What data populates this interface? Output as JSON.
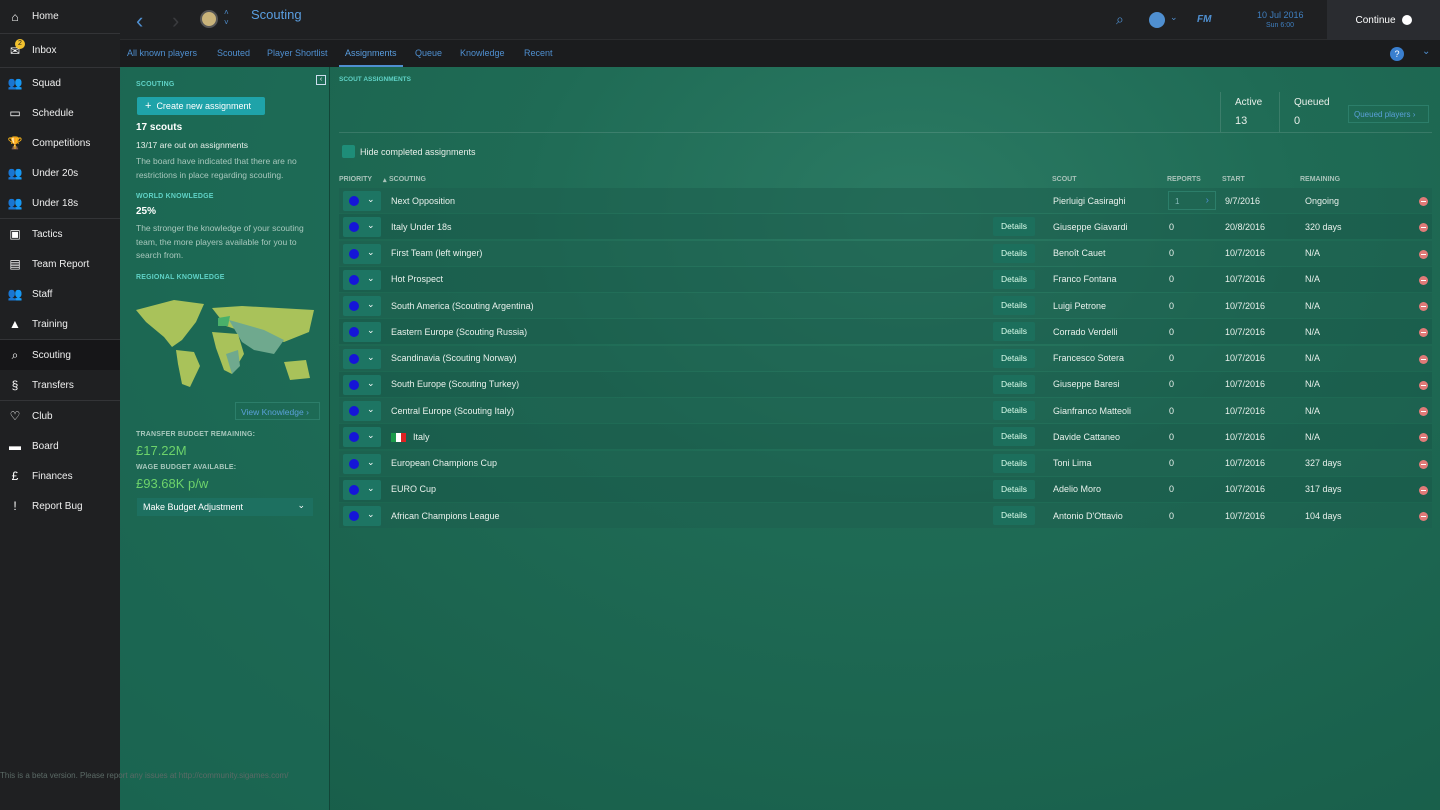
{
  "sidebar": {
    "items": [
      {
        "label": "Home",
        "icon": "home-icon"
      },
      {
        "label": "Inbox",
        "icon": "inbox-icon",
        "badge": "2"
      },
      {
        "label": "Squad",
        "icon": "squad-icon"
      },
      {
        "label": "Schedule",
        "icon": "calendar-icon"
      },
      {
        "label": "Competitions",
        "icon": "trophy-icon"
      },
      {
        "label": "Under 20s",
        "icon": "u20-icon"
      },
      {
        "label": "Under 18s",
        "icon": "u18-icon"
      },
      {
        "label": "Tactics",
        "icon": "tactics-icon"
      },
      {
        "label": "Team Report",
        "icon": "report-icon"
      },
      {
        "label": "Staff",
        "icon": "staff-icon"
      },
      {
        "label": "Training",
        "icon": "cone-icon"
      },
      {
        "label": "Scouting",
        "icon": "search-icon"
      },
      {
        "label": "Transfers",
        "icon": "transfer-icon"
      },
      {
        "label": "Club",
        "icon": "shield-icon"
      },
      {
        "label": "Board",
        "icon": "briefcase-icon"
      },
      {
        "label": "Finances",
        "icon": "pound-icon"
      },
      {
        "label": "Report Bug",
        "icon": "exclamation-icon"
      }
    ],
    "beta_notice": "This is a beta version. Please report any issues at http://community.sigames.com/"
  },
  "header": {
    "title": "Scouting",
    "date": "10 Jul 2016",
    "time": "Sun 6:00",
    "continue": "Continue",
    "fm": "FM"
  },
  "tabs": [
    "All known players",
    "Scouted",
    "Player Shortlist",
    "Assignments",
    "Queue",
    "Knowledge",
    "Recent"
  ],
  "left": {
    "section": "SCOUTING",
    "create": "Create new assignment",
    "scouts": "17 scouts",
    "out": "13/17 are out on assignments",
    "board_note": "The board have indicated that there are no restrictions in place regarding scouting.",
    "world_h": "WORLD KNOWLEDGE",
    "world_v": "25%",
    "world_note": "The stronger the knowledge of your scouting team, the more players available for you to search from.",
    "regional_h": "REGIONAL KNOWLEDGE",
    "view_knowledge": "View Knowledge",
    "transfer_h": "TRANSFER BUDGET REMAINING:",
    "transfer_v": "£17.22M",
    "wage_h": "WAGE BUDGET AVAILABLE:",
    "wage_v": "£93.68K p/w",
    "budget_adj": "Make Budget Adjustment"
  },
  "main": {
    "section": "SCOUT ASSIGNMENTS",
    "active_label": "Active",
    "active": "13",
    "queued_label": "Queued",
    "queued": "0",
    "queued_players": "Queued players",
    "hide_completed": "Hide completed assignments",
    "columns": {
      "priority": "PRIORITY",
      "scouting": "SCOUTING",
      "scout": "SCOUT",
      "reports": "REPORTS",
      "start": "START",
      "remaining": "REMAINING"
    },
    "details_label": "Details",
    "rows": [
      {
        "scouting": "Next Opposition",
        "scout": "Pierluigi Casiraghi",
        "reports": "1",
        "start": "9/7/2016",
        "remaining": "Ongoing"
      },
      {
        "scouting": "Italy Under 18s",
        "scout": "Giuseppe Giavardi",
        "reports": "0",
        "start": "20/8/2016",
        "remaining": "320 days"
      },
      {
        "scouting": "First Team (left winger)",
        "scout": "Benoît Cauet",
        "reports": "0",
        "start": "10/7/2016",
        "remaining": "N/A"
      },
      {
        "scouting": "Hot Prospect",
        "scout": "Franco Fontana",
        "reports": "0",
        "start": "10/7/2016",
        "remaining": "N/A"
      },
      {
        "scouting": "South America (Scouting Argentina)",
        "scout": "Luigi Petrone",
        "reports": "0",
        "start": "10/7/2016",
        "remaining": "N/A"
      },
      {
        "scouting": "Eastern Europe (Scouting Russia)",
        "scout": "Corrado Verdelli",
        "reports": "0",
        "start": "10/7/2016",
        "remaining": "N/A"
      },
      {
        "scouting": "Scandinavia (Scouting Norway)",
        "scout": "Francesco Sotera",
        "reports": "0",
        "start": "10/7/2016",
        "remaining": "N/A"
      },
      {
        "scouting": "South Europe (Scouting Turkey)",
        "scout": "Giuseppe Baresi",
        "reports": "0",
        "start": "10/7/2016",
        "remaining": "N/A"
      },
      {
        "scouting": "Central Europe (Scouting Italy)",
        "scout": "Gianfranco Matteoli",
        "reports": "0",
        "start": "10/7/2016",
        "remaining": "N/A"
      },
      {
        "scouting": "Italy",
        "scout": "Davide Cattaneo",
        "reports": "0",
        "start": "10/7/2016",
        "remaining": "N/A",
        "flag": "italy-flag"
      },
      {
        "scouting": "European Champions Cup",
        "scout": "Toni Lima",
        "reports": "0",
        "start": "10/7/2016",
        "remaining": "327 days"
      },
      {
        "scouting": "EURO Cup",
        "scout": "Adelio Moro",
        "reports": "0",
        "start": "10/7/2016",
        "remaining": "317 days"
      },
      {
        "scouting": "African Champions League",
        "scout": "Antonio D'Ottavio",
        "reports": "0",
        "start": "10/7/2016",
        "remaining": "104 days"
      }
    ]
  },
  "colors": {
    "accent": "#4f8fd0",
    "panel": "#1f6b55",
    "money": "#6dd36b",
    "priority": "#1515d8",
    "remove": "#e07a78"
  }
}
